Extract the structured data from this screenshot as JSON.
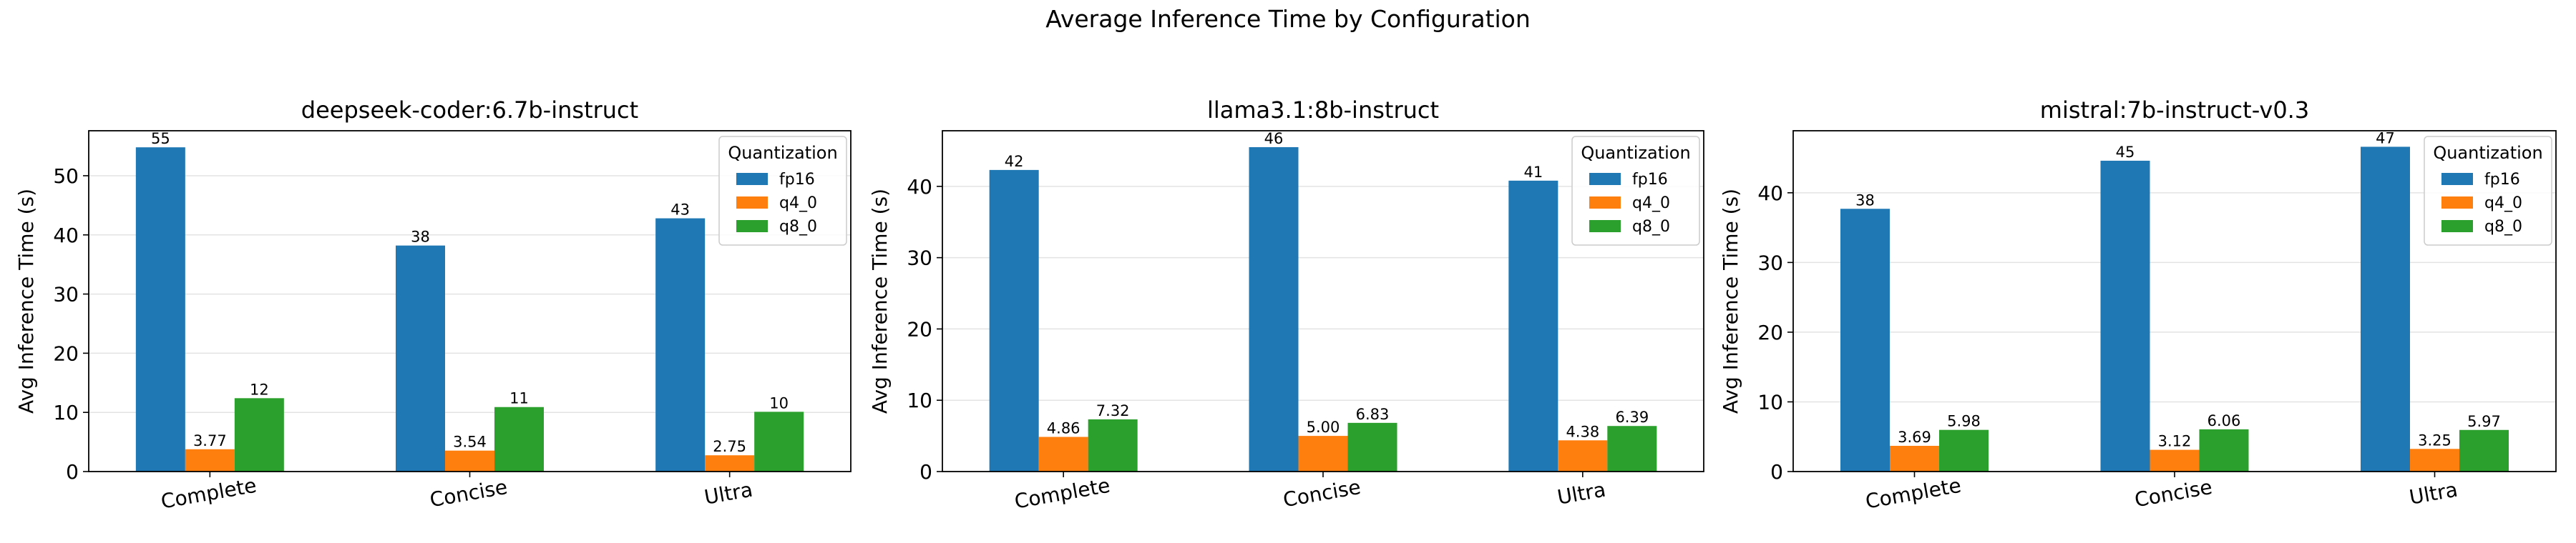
{
  "figure": {
    "suptitle": "Average Inference Time by Configuration"
  },
  "legend": {
    "title": "Quantization",
    "placement": "top-right"
  },
  "colors": {
    "fp16": "#1f77b4",
    "q4_0": "#ff7f0e",
    "q8_0": "#2ca02c"
  },
  "chart_data": [
    {
      "type": "bar",
      "title": "deepseek-coder:6.7b-instruct",
      "xlabel": "",
      "ylabel": "Avg Inference Time (s)",
      "categories": [
        "Complete",
        "Concise",
        "Ultra"
      ],
      "series": [
        {
          "name": "fp16",
          "values": [
            54.8,
            38.2,
            42.8
          ],
          "labels": [
            "55",
            "38",
            "43"
          ]
        },
        {
          "name": "q4_0",
          "values": [
            3.77,
            3.54,
            2.75
          ],
          "labels": [
            "3.77",
            "3.54",
            "2.75"
          ]
        },
        {
          "name": "q8_0",
          "values": [
            12.4,
            10.9,
            10.1
          ],
          "labels": [
            "12",
            "11",
            "10"
          ]
        }
      ],
      "ylim": [
        0,
        57.6
      ],
      "yticks": [
        0,
        10,
        20,
        30,
        40,
        50
      ],
      "grid": "y"
    },
    {
      "type": "bar",
      "title": "llama3.1:8b-instruct",
      "xlabel": "",
      "ylabel": "Avg Inference Time (s)",
      "categories": [
        "Complete",
        "Concise",
        "Ultra"
      ],
      "series": [
        {
          "name": "fp16",
          "values": [
            42.3,
            45.5,
            40.8
          ],
          "labels": [
            "42",
            "46",
            "41"
          ]
        },
        {
          "name": "q4_0",
          "values": [
            4.86,
            5.0,
            4.38
          ],
          "labels": [
            "4.86",
            "5.00",
            "4.38"
          ]
        },
        {
          "name": "q8_0",
          "values": [
            7.32,
            6.83,
            6.39
          ],
          "labels": [
            "7.32",
            "6.83",
            "6.39"
          ]
        }
      ],
      "ylim": [
        0,
        47.8
      ],
      "yticks": [
        0,
        10,
        20,
        30,
        40
      ],
      "grid": "y"
    },
    {
      "type": "bar",
      "title": "mistral:7b-instruct-v0.3",
      "xlabel": "",
      "ylabel": "Avg Inference Time (s)",
      "categories": [
        "Complete",
        "Concise",
        "Ultra"
      ],
      "series": [
        {
          "name": "fp16",
          "values": [
            37.7,
            44.6,
            46.6
          ],
          "labels": [
            "38",
            "45",
            "47"
          ]
        },
        {
          "name": "q4_0",
          "values": [
            3.69,
            3.12,
            3.25
          ],
          "labels": [
            "3.69",
            "3.12",
            "3.25"
          ]
        },
        {
          "name": "q8_0",
          "values": [
            5.98,
            6.06,
            5.97
          ],
          "labels": [
            "5.98",
            "6.06",
            "5.97"
          ]
        }
      ],
      "ylim": [
        0,
        48.9
      ],
      "yticks": [
        0,
        10,
        20,
        30,
        40
      ],
      "grid": "y"
    }
  ]
}
